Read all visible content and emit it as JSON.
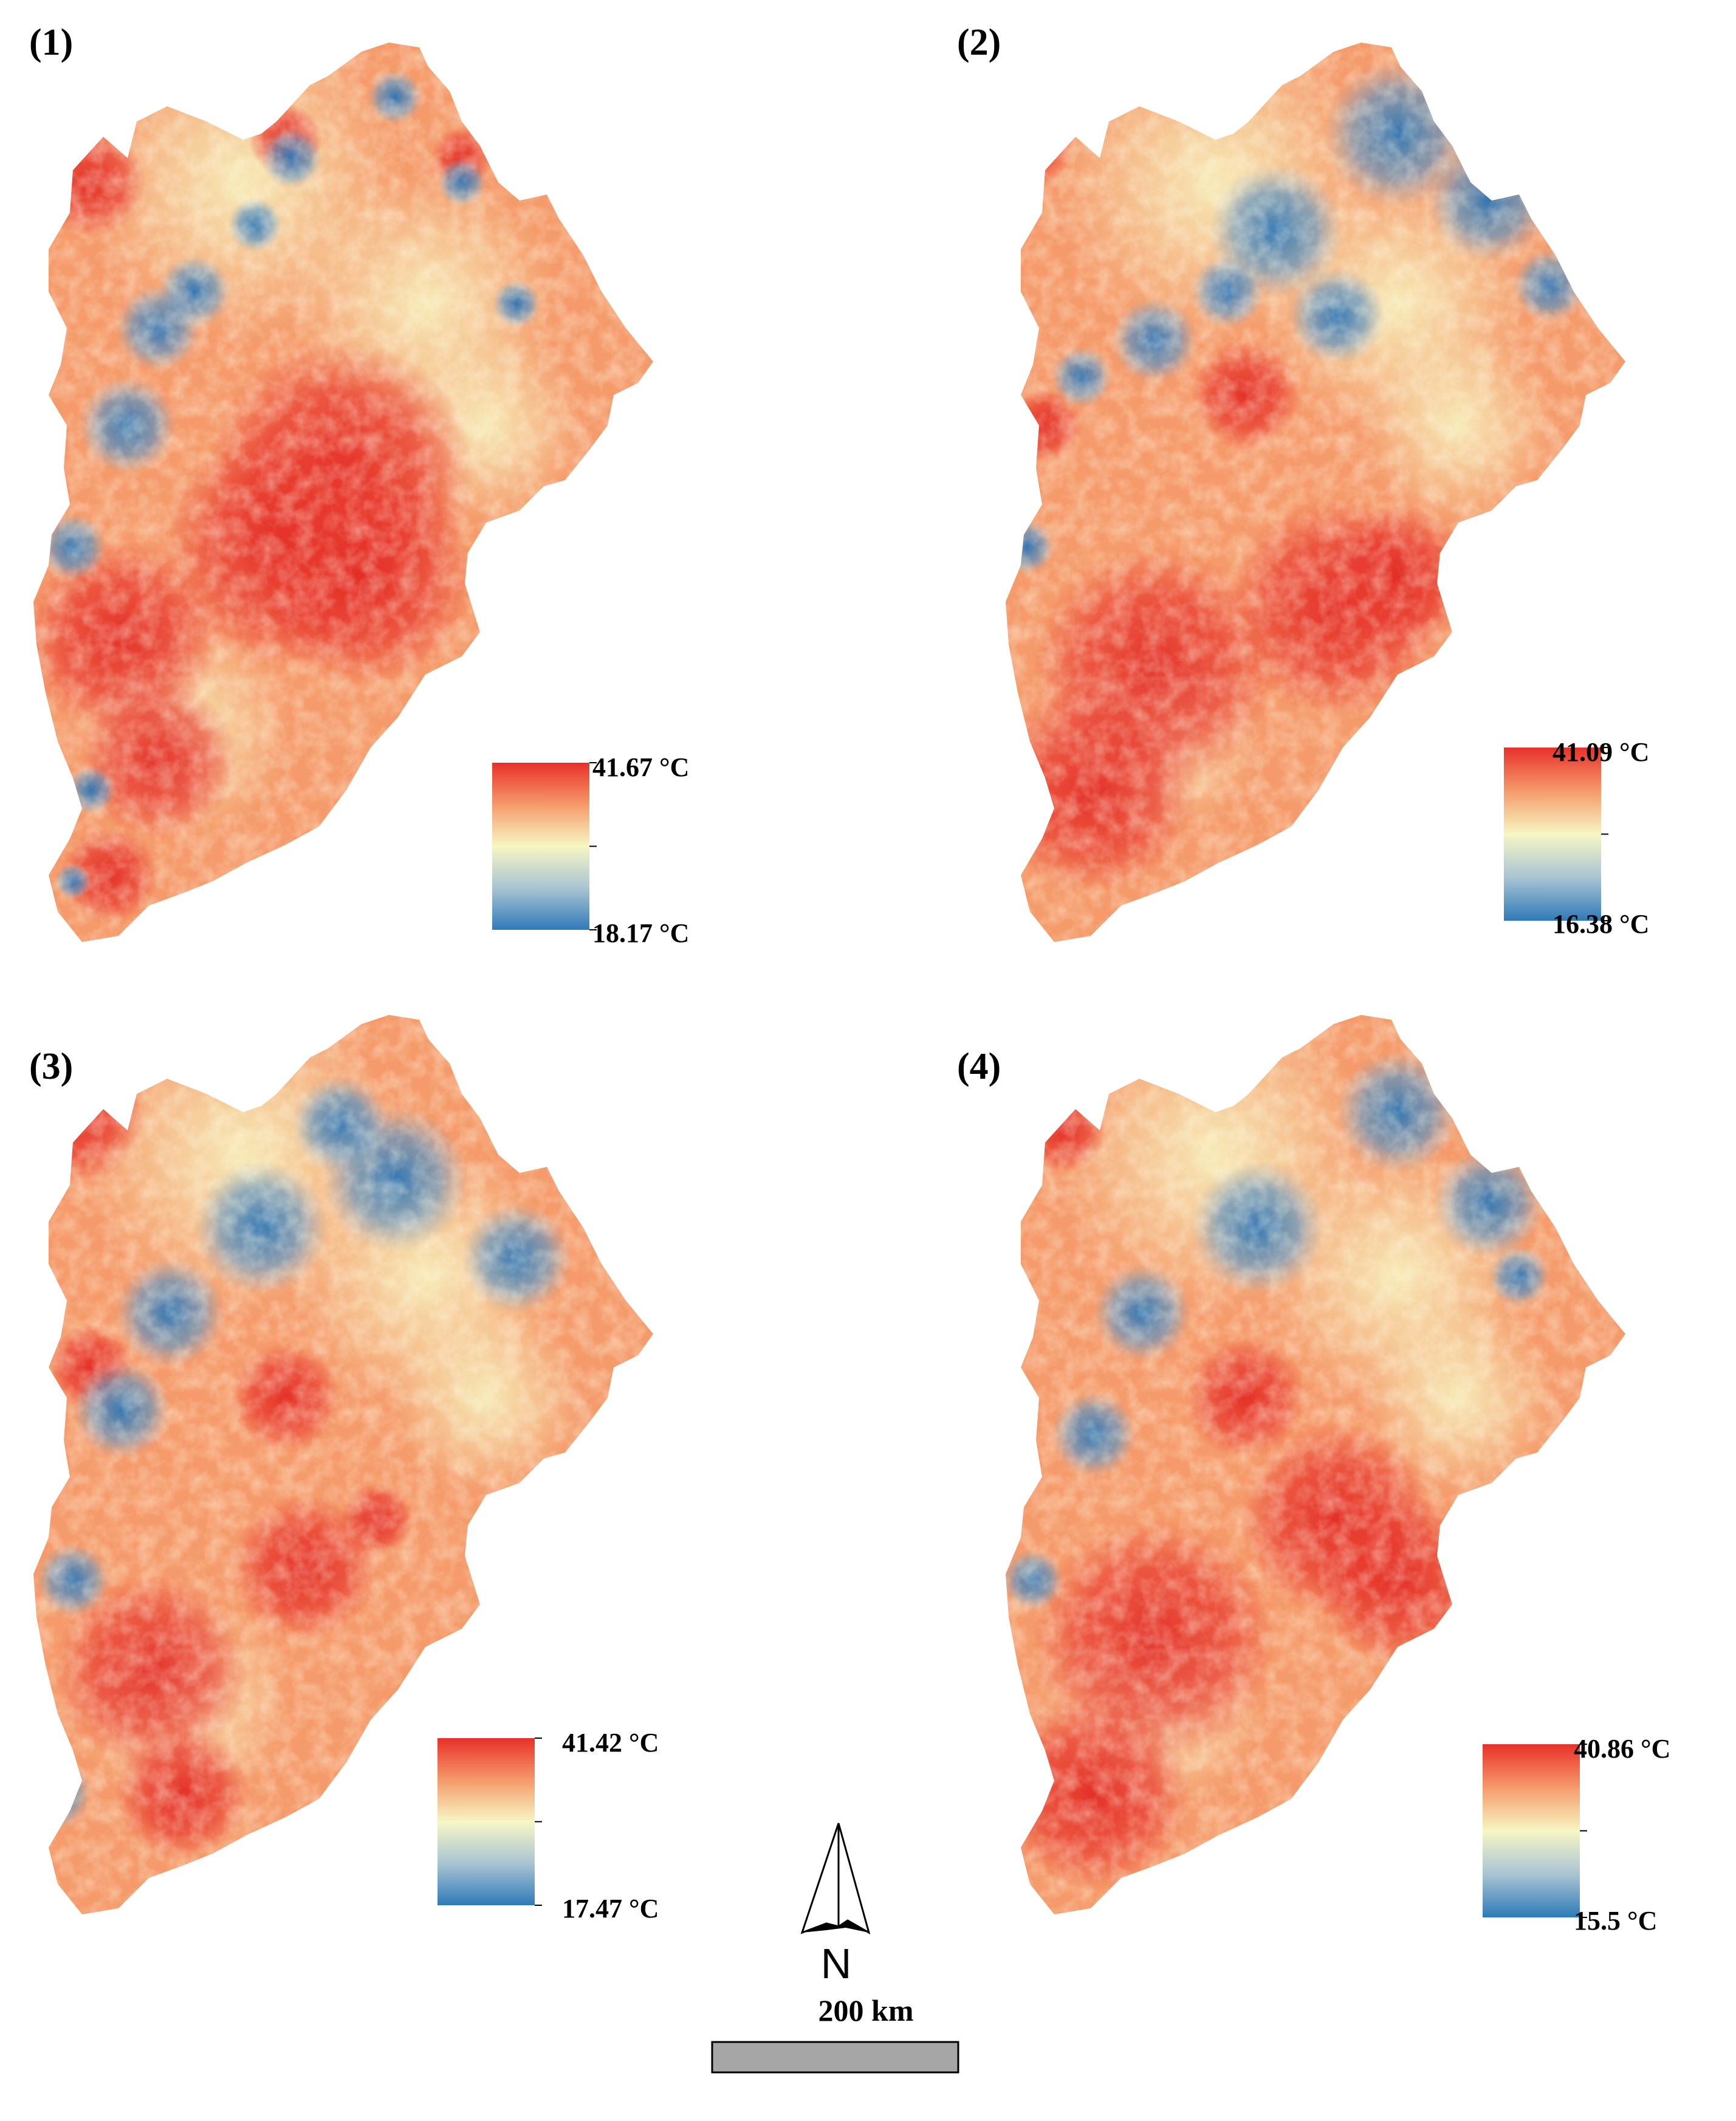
{
  "panels": [
    {
      "label": "(1)",
      "max_label": "41.67 °C",
      "min_label": "18.17 °C",
      "max": 41.67,
      "min": 18.17
    },
    {
      "label": "(2)",
      "max_label": "41.09 °C",
      "min_label": "16.38 °C",
      "max": 41.09,
      "min": 16.38
    },
    {
      "label": "(3)",
      "max_label": "41.42 °C",
      "min_label": "17.47 °C",
      "max": 41.42,
      "min": 17.47
    },
    {
      "label": "(4)",
      "max_label": "40.86 °C",
      "min_label": "15.5 °C",
      "max": 40.86,
      "min": 15.5
    }
  ],
  "north_arrow": {
    "label": "N"
  },
  "scale_bar": {
    "label": "200 km"
  },
  "colors": {
    "hot": "#e8302a",
    "warm": "#f59a6a",
    "mid": "#f7f6c4",
    "cool": "#a9c4d2",
    "cold": "#2f7ab9",
    "scale_bar_fill": "#a6a6a6"
  }
}
